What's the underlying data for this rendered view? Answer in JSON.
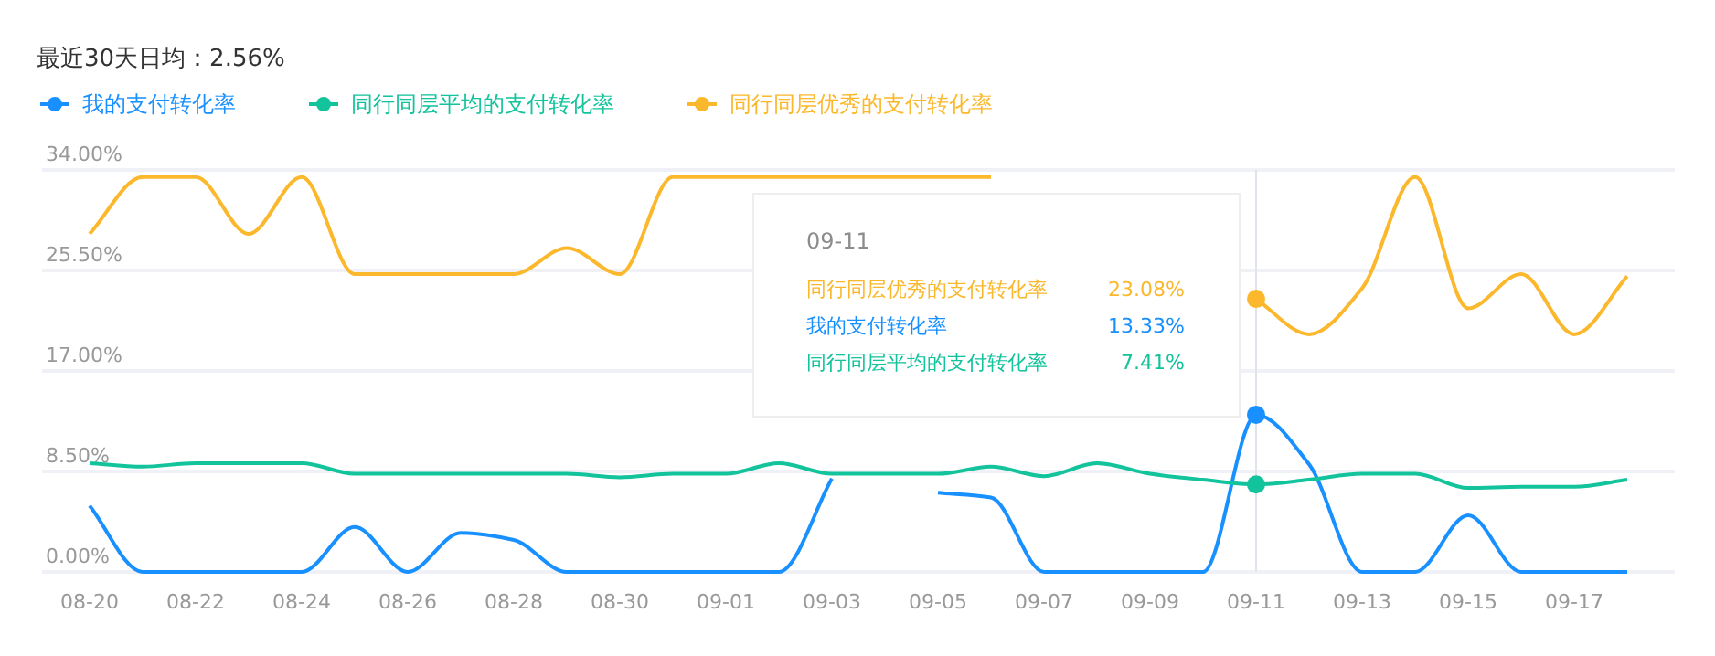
{
  "chart_data": {
    "type": "line",
    "title": "最近30天日均：2.56%",
    "categories": [
      "08-20",
      null,
      "08-22",
      null,
      "08-24",
      null,
      "08-26",
      null,
      "08-28",
      null,
      "08-30",
      null,
      "09-01",
      null,
      "09-03",
      null,
      "09-05",
      null,
      "09-07",
      null,
      "09-09",
      null,
      "09-11",
      null,
      "09-13",
      null,
      "09-15",
      null,
      "09-17",
      null
    ],
    "series": [
      {
        "name": "我的支付转化率",
        "color": "#1890ff",
        "values": [
          5.6,
          0,
          0,
          0,
          0,
          3.8,
          0,
          3.3,
          2.7,
          0,
          0,
          0,
          0,
          0,
          7.9,
          null,
          6.7,
          6.3,
          0,
          0,
          0,
          0,
          13.3,
          9.1,
          0,
          0,
          4.8,
          0,
          0,
          0
        ]
      },
      {
        "name": "同行同层平均的支付转化率",
        "color": "#13c39c",
        "values": [
          9.2,
          8.9,
          9.2,
          9.2,
          9.2,
          8.3,
          8.3,
          8.3,
          8.3,
          8.3,
          8.0,
          8.3,
          8.3,
          9.2,
          8.3,
          8.3,
          8.3,
          8.9,
          8.1,
          9.2,
          8.3,
          7.8,
          7.4,
          7.8,
          8.3,
          8.3,
          7.1,
          7.2,
          7.2,
          7.8
        ]
      },
      {
        "name": "同行同层优秀的支付转化率",
        "color": "#fbb82c",
        "values": [
          28.6,
          33.4,
          33.4,
          28.6,
          33.4,
          25.2,
          25.2,
          25.2,
          25.2,
          27.4,
          25.2,
          33.4,
          33.4,
          33.4,
          33.4,
          33.4,
          33.4,
          33.4,
          null,
          null,
          null,
          null,
          23.1,
          20.1,
          24.0,
          33.4,
          22.3,
          25.2,
          20.1,
          25.0
        ]
      }
    ],
    "ylim": [
      0,
      34
    ],
    "yticks": [
      {
        "value": 0,
        "label": "0.00%"
      },
      {
        "value": 8.5,
        "label": "8.50%"
      },
      {
        "value": 17,
        "label": "17.00%"
      },
      {
        "value": 25.5,
        "label": "25.50%"
      },
      {
        "value": 34,
        "label": "34.00%"
      }
    ],
    "grid": "y",
    "legend": "top left",
    "marker": "none",
    "ref_lines": [
      {
        "axis": "x",
        "value": "09-11",
        "color": "#e0e3ea"
      }
    ],
    "annotations": [
      "23.08%",
      "13.33%",
      "7.41%"
    ]
  }
}
